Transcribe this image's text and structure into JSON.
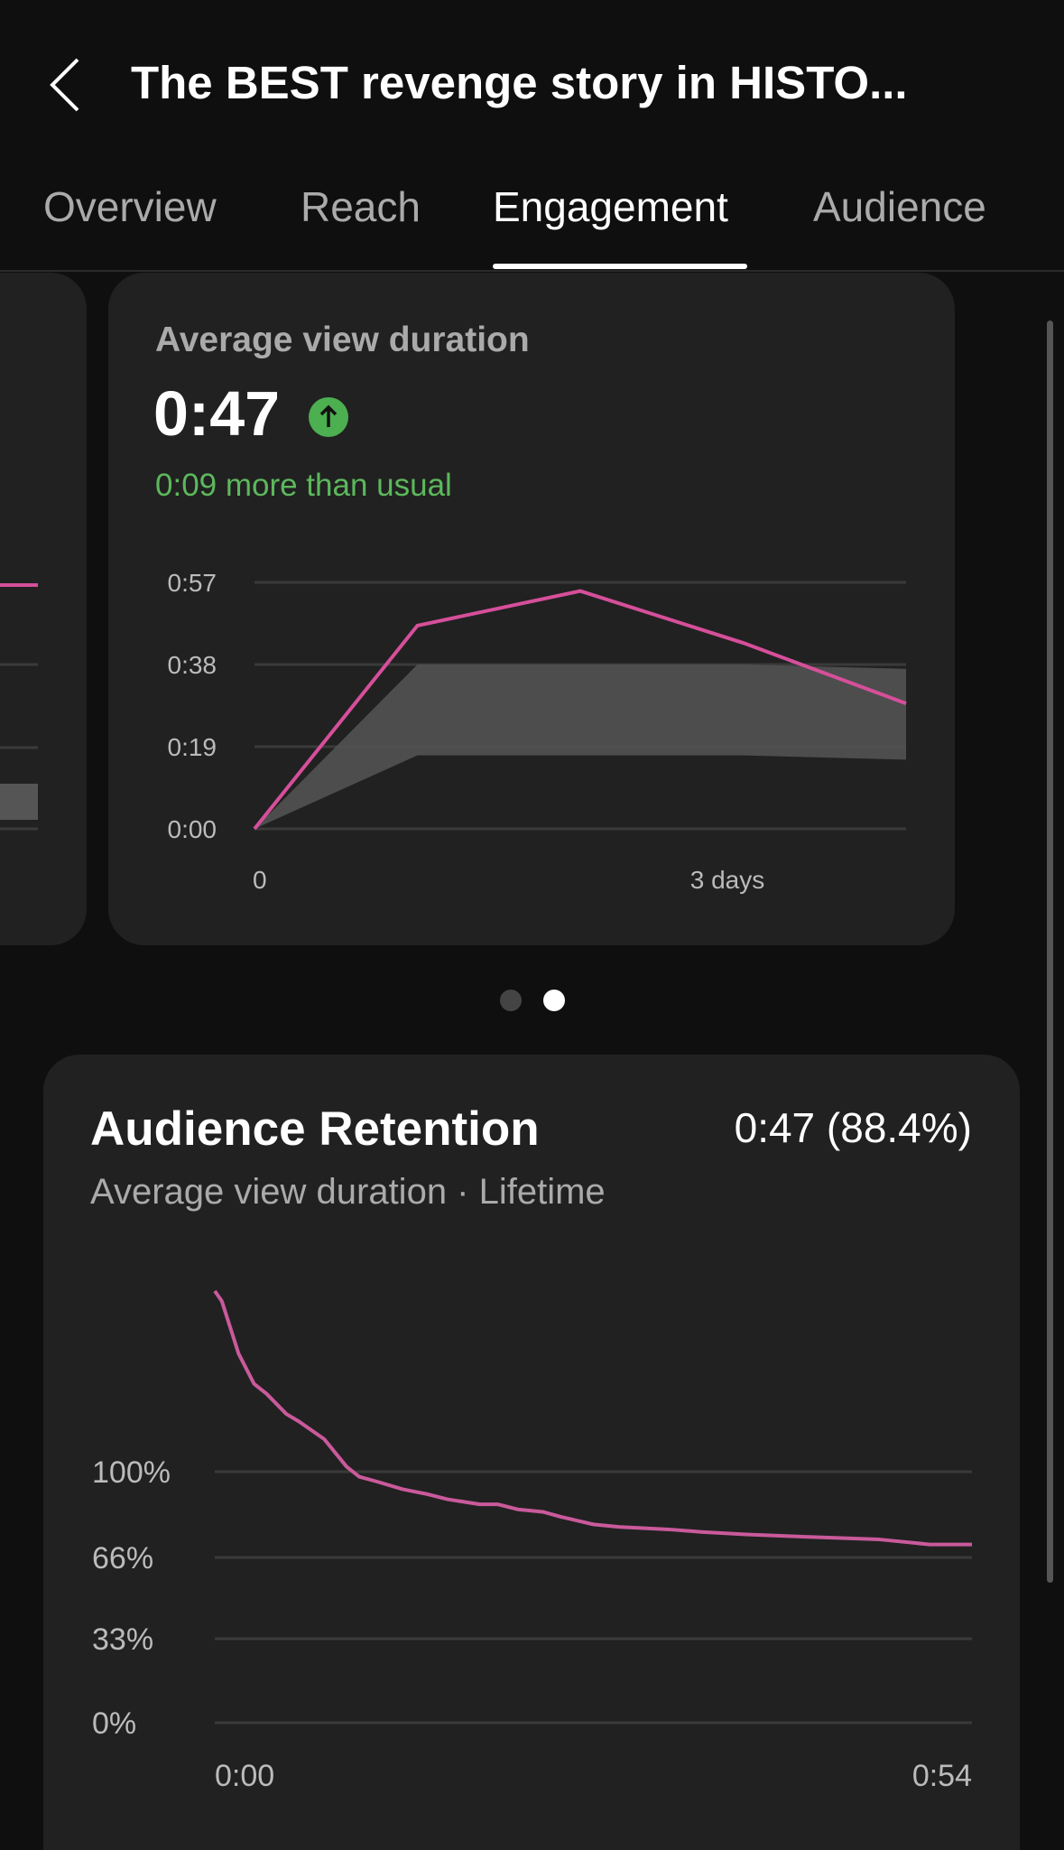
{
  "header": {
    "title": "The BEST revenge story in HISTO...",
    "back_icon": "chevron-left-icon"
  },
  "tabs": [
    {
      "label": "Overview",
      "active": false
    },
    {
      "label": "Reach",
      "active": false
    },
    {
      "label": "Engagement",
      "active": true
    },
    {
      "label": "Audience",
      "active": false
    }
  ],
  "avd_card": {
    "label": "Average view duration",
    "value": "0:47",
    "trend_icon": "arrow-up-circle-icon",
    "delta": "0:09 more than usual"
  },
  "pager": {
    "count": 2,
    "active_index": 1
  },
  "retention_card": {
    "title": "Audience Retention",
    "value": "0:47 (88.4%)",
    "subtitle": "Average view duration · Lifetime"
  },
  "colors": {
    "accent_line": "#d64f9a",
    "positive": "#5cb85c",
    "band": "#555555",
    "background": "#0f0f0f",
    "card": "#212121"
  },
  "chart_data": [
    {
      "type": "line",
      "y_tick_labels": [
        "0:00",
        "0:19",
        "0:38",
        "0:57"
      ],
      "y_ticks_seconds": [
        0,
        19,
        38,
        57
      ],
      "ylim": [
        0,
        57
      ],
      "x_tick_labels": [
        "0",
        "3 days"
      ],
      "series": [
        {
          "values_seconds": [
            0,
            47,
            55,
            43,
            29
          ]
        }
      ],
      "typical_range": {
        "upper_seconds": [
          0,
          38,
          38,
          38,
          37
        ],
        "lower_seconds": [
          0,
          17,
          17,
          17,
          16
        ]
      },
      "grid": true
    },
    {
      "type": "line",
      "y_tick_labels": [
        "0%",
        "33%",
        "66%",
        "100%"
      ],
      "y_ticks": [
        0,
        33,
        66,
        100
      ],
      "x_tick_labels": [
        "0:00",
        "0:54"
      ],
      "xlim_seconds": [
        0,
        54
      ],
      "series": [
        {
          "x_seconds": [
            0,
            0.5,
            1.7,
            2.8,
            3.7,
            5.1,
            6.0,
            7.8,
            9.4,
            10.3,
            11.6,
            13.4,
            15.2,
            16.6,
            18.9,
            20.2,
            21.6,
            23.4,
            24.7,
            27.0,
            28.8,
            32.4,
            34.7,
            37.9,
            42.4,
            47.4,
            51.0,
            54
          ],
          "y_percent": [
            172,
            168,
            147,
            135,
            131,
            123,
            120,
            113,
            102,
            98,
            96,
            93,
            91,
            89,
            87,
            87,
            85,
            84,
            82,
            79,
            78,
            77,
            76,
            75,
            74,
            73,
            71,
            71
          ]
        }
      ],
      "grid": true
    }
  ]
}
